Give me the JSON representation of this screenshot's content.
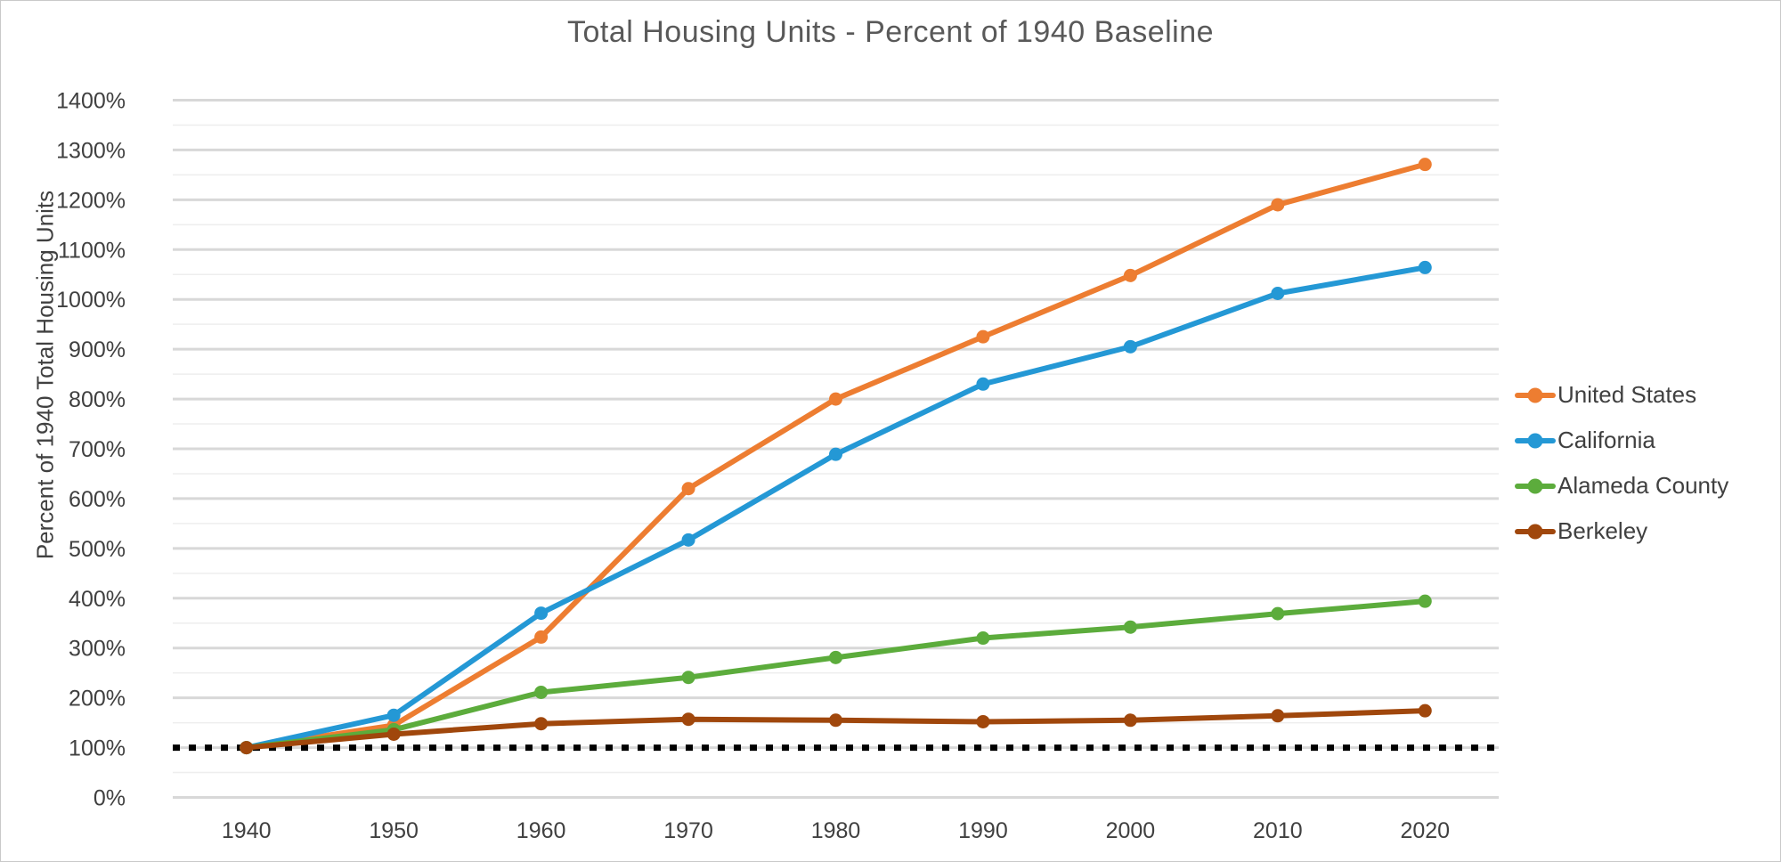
{
  "chart_data": {
    "type": "line",
    "title": "Total Housing Units - Percent of 1940 Baseline",
    "xlabel": "",
    "ylabel": "Percent of 1940 Total Housing Units",
    "categories": [
      "1940",
      "1950",
      "1960",
      "1970",
      "1980",
      "1990",
      "2000",
      "2010",
      "2020"
    ],
    "y_ticks": [
      "0%",
      "100%",
      "200%",
      "300%",
      "400%",
      "500%",
      "600%",
      "700%",
      "800%",
      "900%",
      "1000%",
      "1100%",
      "1200%",
      "1300%",
      "1400%"
    ],
    "ylim": [
      0,
      1400
    ],
    "y_major_step": 100,
    "y_minor_step": 50,
    "grid": true,
    "legend_position": "right",
    "baseline": {
      "value": 100,
      "style": "dotted",
      "color": "#000000"
    },
    "series": [
      {
        "name": "United States",
        "color": "#ED7D31",
        "values": [
          100,
          145,
          322,
          620,
          800,
          925,
          1048,
          1190,
          1271
        ]
      },
      {
        "name": "California",
        "color": "#2498D5",
        "values": [
          100,
          165,
          370,
          517,
          689,
          830,
          905,
          1012,
          1064
        ]
      },
      {
        "name": "Alameda County",
        "color": "#5CAC3C",
        "values": [
          100,
          136,
          211,
          241,
          281,
          320,
          342,
          369,
          394
        ]
      },
      {
        "name": "Berkeley",
        "color": "#A0470C",
        "values": [
          100,
          127,
          148,
          157,
          155,
          152,
          155,
          164,
          174
        ]
      }
    ]
  },
  "style": {
    "title_color": "#595959",
    "axis_text_color": "#404040",
    "major_grid_color": "#d8d8d8",
    "minor_grid_color": "#eeeeee",
    "frame_border_color": "#c9c9c9"
  }
}
